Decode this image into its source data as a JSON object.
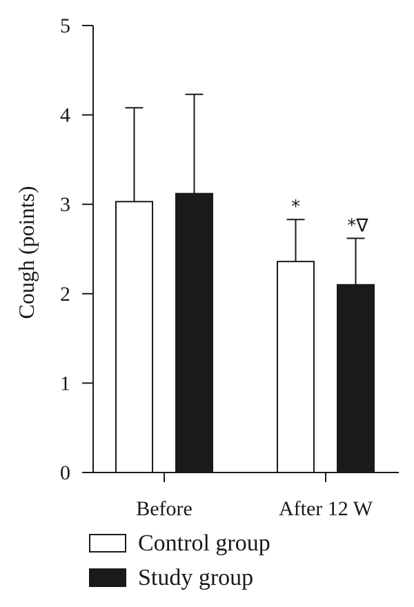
{
  "chart_data": {
    "type": "bar",
    "title": "",
    "xlabel": "",
    "ylabel": "Cough (points)",
    "ylim": [
      0,
      5
    ],
    "yticks": [
      "0",
      "1",
      "2",
      "3",
      "4",
      "5"
    ],
    "grid": false,
    "legend_position": "bottom",
    "categories": [
      "Before",
      "After 12 W"
    ],
    "series": [
      {
        "name": "Control group",
        "color": "#ffffff",
        "values": [
          3.03,
          2.36
        ],
        "errors": [
          1.05,
          0.47
        ],
        "annotations": [
          "",
          "*"
        ]
      },
      {
        "name": "Study group",
        "color": "#1a1a1a",
        "values": [
          3.12,
          2.1
        ],
        "errors": [
          1.11,
          0.52
        ],
        "annotations": [
          "",
          "*∇"
        ]
      }
    ]
  }
}
